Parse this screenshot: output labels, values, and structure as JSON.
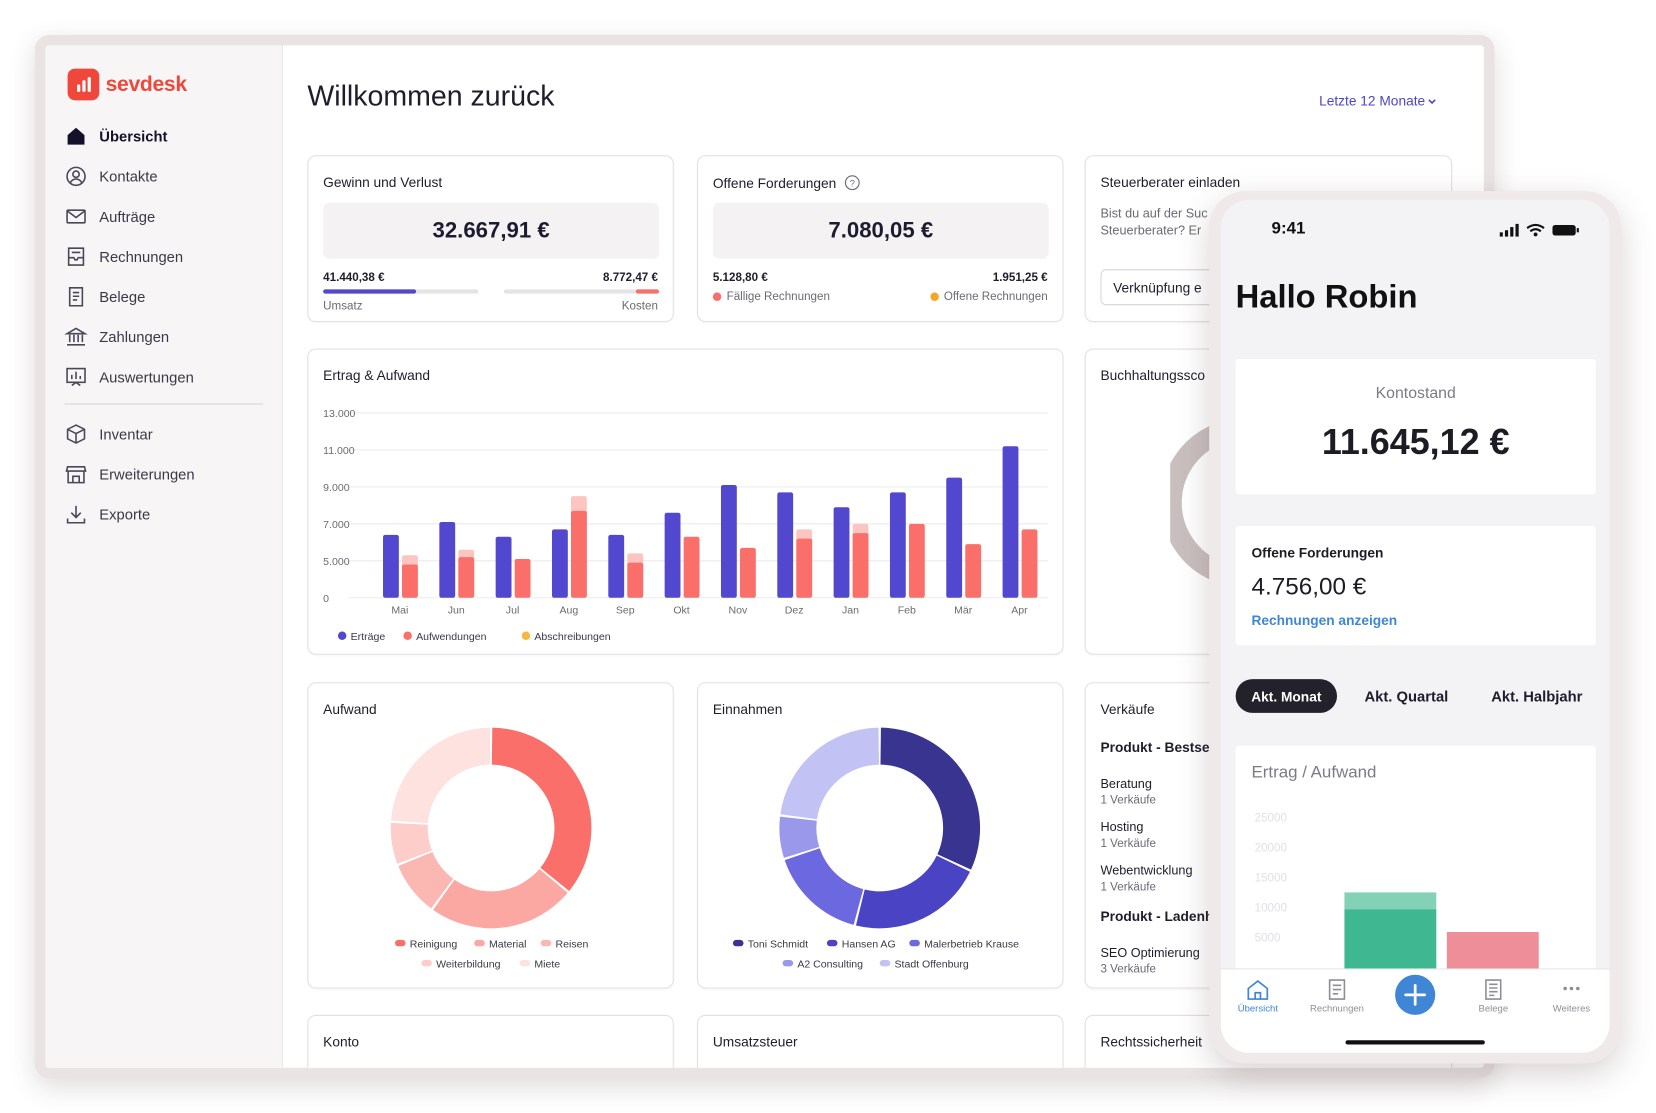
{
  "brand": {
    "name": "sevdesk",
    "color": "#f0473b",
    "accent": "#4c46c7"
  },
  "sidebar": {
    "items": [
      {
        "label": "Übersicht",
        "icon": "home-icon",
        "active": true
      },
      {
        "label": "Kontakte",
        "icon": "contacts-icon"
      },
      {
        "label": "Aufträge",
        "icon": "mail-icon"
      },
      {
        "label": "Rechnungen",
        "icon": "invoice-icon"
      },
      {
        "label": "Belege",
        "icon": "receipt-icon"
      },
      {
        "label": "Zahlungen",
        "icon": "bank-icon"
      },
      {
        "label": "Auswertungen",
        "icon": "chart-icon"
      },
      {
        "label": "Inventar",
        "icon": "box-icon"
      },
      {
        "label": "Erweiterungen",
        "icon": "store-icon"
      },
      {
        "label": "Exporte",
        "icon": "download-icon"
      }
    ]
  },
  "header": {
    "title": "Willkommen zurück",
    "period": "Letzte 12 Monate"
  },
  "profit": {
    "title": "Gewinn und Verlust",
    "value": "32.667,91 €",
    "revenue": "41.440,38 €",
    "revenue_label": "Umsatz",
    "revenue_ratio": 0.6,
    "cost": "8.772,47 €",
    "cost_label": "Kosten",
    "cost_ratio": 0.15
  },
  "receivables": {
    "title": "Offene Forderungen",
    "value": "7.080,05 €",
    "due": "5.128,80 €",
    "due_label": "Fällige Rechnungen",
    "open": "1.951,25 €",
    "open_label": "Offene Rechnungen"
  },
  "advisor": {
    "title": "Steuerberater einladen",
    "text1": "Bist du auf der Suc",
    "text2": "Steuerberater? Er",
    "button": "Verknüpfung e"
  },
  "bookkeeping": {
    "title": "Buchhaltungssco"
  },
  "sales": {
    "title": "Verkäufe",
    "sub1": "Produkt - Bestse",
    "items": [
      {
        "name": "Beratung",
        "count": "1 Verkäufe"
      },
      {
        "name": "Hosting",
        "count": "1 Verkäufe"
      },
      {
        "name": "Webentwicklung",
        "count": "1 Verkäufe"
      }
    ],
    "sub2": "Produkt - Ladenh",
    "item4": {
      "name": "SEO Optimierung",
      "count": "3 Verkäufe"
    }
  },
  "bottom": {
    "konto": "Konto",
    "ust": "Umsatzsteuer",
    "recht": "Rechtssicherheit"
  },
  "chart_data": [
    {
      "type": "bar",
      "title": "Ertrag & Aufwand",
      "categories": [
        "Mai",
        "Jun",
        "Jul",
        "Aug",
        "Sep",
        "Okt",
        "Nov",
        "Dez",
        "Jan",
        "Feb",
        "Mär",
        "Apr"
      ],
      "yticks": [
        "13.000",
        "11.000",
        "9.000",
        "7.000",
        "5.000",
        "0"
      ],
      "ylim": [
        3000,
        13000
      ],
      "series": [
        {
          "name": "Erträge",
          "color": "#5247cf",
          "values": [
            6400,
            7100,
            6300,
            6700,
            6400,
            7600,
            9100,
            8700,
            7900,
            8700,
            9500,
            11200
          ]
        },
        {
          "name": "Aufwendungen",
          "color": "#fb6f6a",
          "values": [
            4800,
            5200,
            5100,
            7700,
            4900,
            6300,
            5700,
            6200,
            6500,
            7000,
            5900,
            6700
          ]
        },
        {
          "name": "Abschreibungen",
          "color": "#f5b942",
          "values": [
            500,
            400,
            0,
            800,
            500,
            0,
            0,
            500,
            500,
            0,
            0,
            0
          ]
        }
      ]
    },
    {
      "type": "pie",
      "title": "Aufwand",
      "labels": [
        "Reinigung",
        "Material",
        "Reisen",
        "Weiterbildung",
        "Miete"
      ],
      "values": [
        36,
        24,
        9,
        7,
        24
      ],
      "colors": [
        "#fb6f6a",
        "#fba8a2",
        "#fbb8b3",
        "#fdcdc9",
        "#fde2e0"
      ]
    },
    {
      "type": "pie",
      "title": "Einnahmen",
      "labels": [
        "Toni Schmidt",
        "Hansen AG",
        "Malerbetrieb Krause",
        "A2 Consulting",
        "Stadt Offenburg"
      ],
      "values": [
        32,
        22,
        16,
        7,
        23
      ],
      "colors": [
        "#38348f",
        "#4a44c4",
        "#6b68e0",
        "#9a98ea",
        "#c3c2f4"
      ]
    },
    {
      "type": "bar",
      "title": "Ertrag / Aufwand",
      "yticks": [
        "25000",
        "20000",
        "15000",
        "10000",
        "5000"
      ],
      "ylim": [
        0,
        25000
      ],
      "series": [
        {
          "name": "Ertrag",
          "color": "#3fb892",
          "values": [
            9700
          ],
          "light_values": [
            12500
          ]
        },
        {
          "name": "Aufwand",
          "color": "#ee8e99",
          "values": [
            5900
          ]
        }
      ]
    }
  ],
  "phone": {
    "time": "9:41",
    "greeting": "Hallo Robin",
    "balance_label": "Kontostand",
    "balance": "11.645,12 €",
    "open_title": "Offene Forderungen",
    "open_value": "4.756,00 €",
    "open_link": "Rechnungen anzeigen",
    "segments": [
      "Akt. Monat",
      "Akt. Quartal",
      "Akt. Halbjahr"
    ],
    "tabs": [
      {
        "label": "Übersicht",
        "icon": "home-icon"
      },
      {
        "label": "Rechnungen",
        "icon": "invoice-icon"
      },
      {
        "label": "",
        "icon": "plus-icon"
      },
      {
        "label": "Belege",
        "icon": "receipt-icon"
      },
      {
        "label": "Weiteres",
        "icon": "more-icon"
      }
    ]
  }
}
